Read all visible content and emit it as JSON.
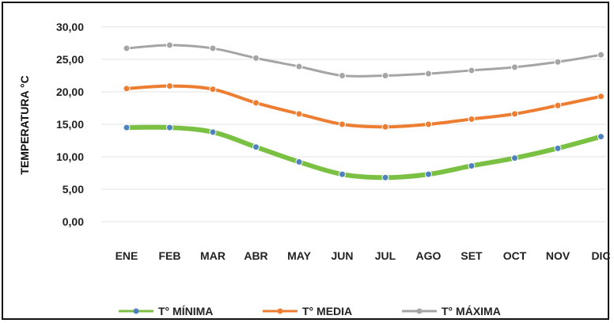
{
  "chart_data": {
    "type": "line",
    "title": "",
    "xlabel": "",
    "ylabel": "TEMPERATURA °C",
    "ylim": [
      0,
      30
    ],
    "yticks": [
      "0,00",
      "5,00",
      "10,00",
      "15,00",
      "20,00",
      "25,00",
      "30,00"
    ],
    "grid": true,
    "legend_position": "bottom",
    "categories": [
      "ENE",
      "FEB",
      "MAR",
      "ABR",
      "MAY",
      "JUN",
      "JUL",
      "AGO",
      "SET",
      "OCT",
      "NOV",
      "DIC"
    ],
    "series": [
      {
        "name": "T° MÍNIMA",
        "color": "#7ac143",
        "marker_color": "#4f81bd",
        "values": [
          14.5,
          14.5,
          13.8,
          11.5,
          9.2,
          7.3,
          6.8,
          7.3,
          8.6,
          9.8,
          11.3,
          13.1
        ]
      },
      {
        "name": "T° MEDIA",
        "color": "#ed7d31",
        "marker_color": "#ed7d31",
        "values": [
          20.5,
          20.9,
          20.4,
          18.3,
          16.6,
          15.0,
          14.6,
          15.0,
          15.8,
          16.6,
          17.9,
          19.3
        ]
      },
      {
        "name": "T° MÁXIMA",
        "color": "#a5a5a5",
        "marker_color": "#a5a5a5",
        "values": [
          26.7,
          27.2,
          26.7,
          25.2,
          23.9,
          22.5,
          22.5,
          22.8,
          23.3,
          23.8,
          24.6,
          25.7
        ]
      }
    ]
  }
}
